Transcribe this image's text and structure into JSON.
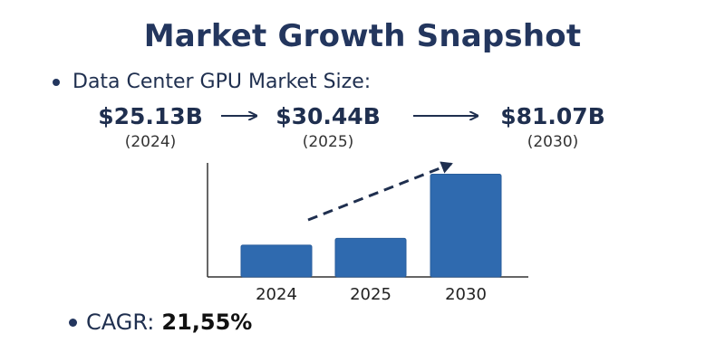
{
  "title": "Market Growth Snapshot",
  "subtitle": "Data Center GPU Market Size:",
  "milestones": [
    {
      "value": "$25.13B",
      "year": "(2024)"
    },
    {
      "value": "$30.44B",
      "year": "(2025)"
    },
    {
      "value": "$81.07B",
      "year": "(2030)"
    }
  ],
  "cagr": {
    "label": "CAGR:",
    "value": "21,55%"
  },
  "colors": {
    "bar": "#2f6aaf",
    "bar_edge": "#2a5e9c",
    "text": "#1f2f4f",
    "title": "#23365e",
    "arrow": "#1f2f4f"
  },
  "chart_data": {
    "type": "bar",
    "categories": [
      "2024",
      "2025",
      "2030"
    ],
    "values": [
      25.13,
      30.44,
      81.07
    ],
    "ylim": [
      0,
      90
    ],
    "grid": false,
    "legend": "none",
    "annotations": [
      "dashed trend arrow pointing up-right"
    ]
  }
}
